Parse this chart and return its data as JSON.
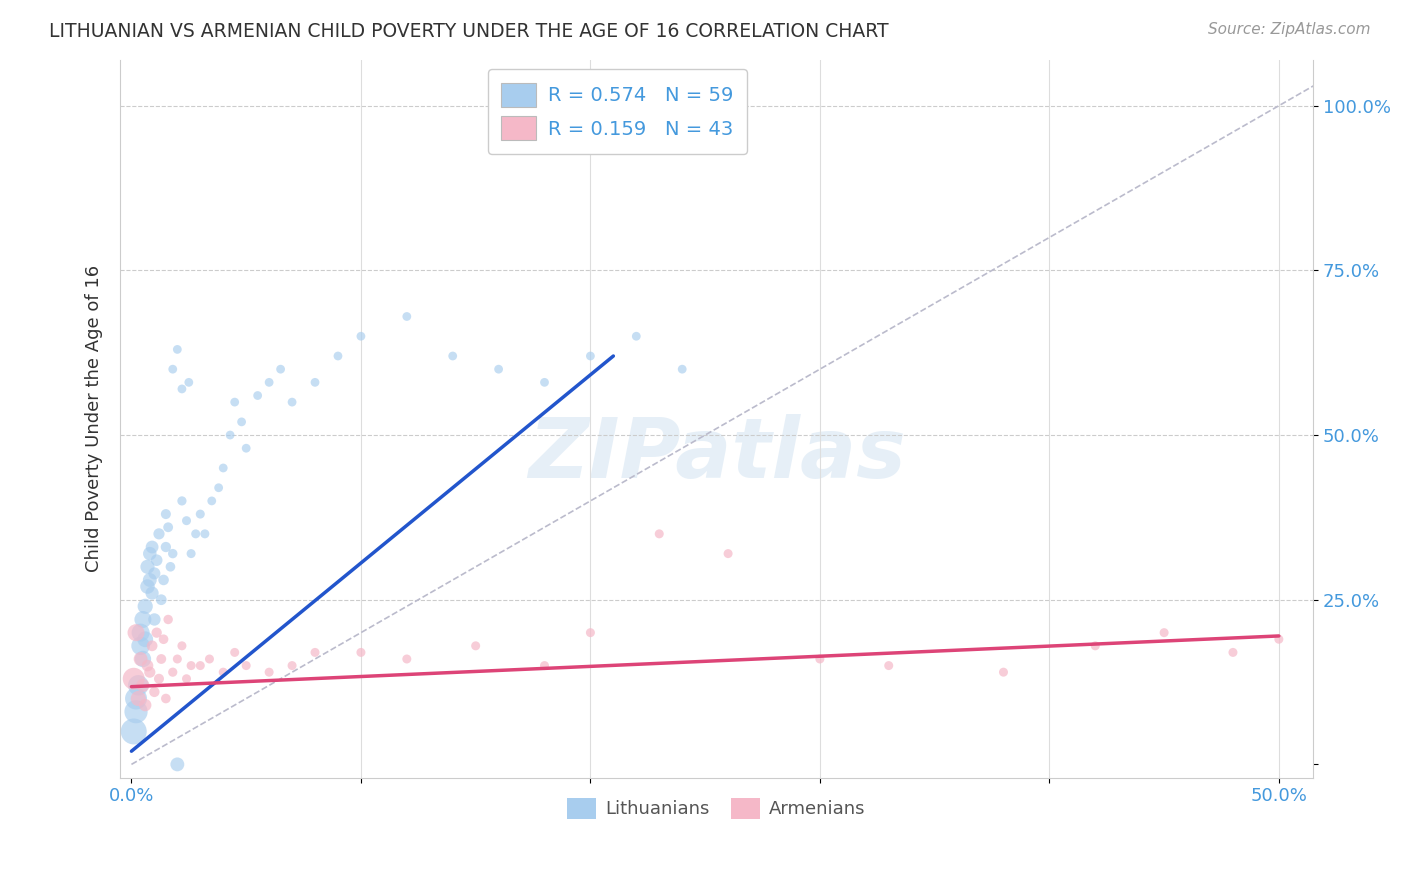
{
  "title": "LITHUANIAN VS ARMENIAN CHILD POVERTY UNDER THE AGE OF 16 CORRELATION CHART",
  "source": "Source: ZipAtlas.com",
  "ylabel": "Child Poverty Under the Age of 16",
  "xlim": [
    -0.005,
    0.515
  ],
  "ylim": [
    -0.02,
    1.07
  ],
  "xticks": [
    0.0,
    0.1,
    0.2,
    0.3,
    0.4,
    0.5
  ],
  "xticklabels": [
    "0.0%",
    "",
    "",
    "",
    "",
    "50.0%"
  ],
  "yticks": [
    0.0,
    0.25,
    0.5,
    0.75,
    1.0
  ],
  "yticklabels": [
    "",
    "25.0%",
    "50.0%",
    "75.0%",
    "100.0%"
  ],
  "color_blue": "#A8CDEE",
  "color_pink": "#F5B8C8",
  "color_blue_line": "#2255CC",
  "color_pink_line": "#DD4477",
  "color_diag": "#BBBBCC",
  "watermark_text": "ZIPatlas",
  "axis_color": "#4499DD",
  "legend_label1": "R = 0.574   N = 59",
  "legend_label2": "R = 0.159   N = 43",
  "lit_x": [
    0.001,
    0.002,
    0.002,
    0.003,
    0.004,
    0.004,
    0.005,
    0.005,
    0.006,
    0.006,
    0.007,
    0.007,
    0.008,
    0.008,
    0.009,
    0.009,
    0.01,
    0.01,
    0.011,
    0.012,
    0.013,
    0.014,
    0.015,
    0.015,
    0.016,
    0.017,
    0.018,
    0.02,
    0.022,
    0.024,
    0.026,
    0.028,
    0.03,
    0.032,
    0.035,
    0.038,
    0.04,
    0.043,
    0.045,
    0.048,
    0.05,
    0.055,
    0.06,
    0.065,
    0.07,
    0.08,
    0.09,
    0.1,
    0.12,
    0.14,
    0.16,
    0.18,
    0.2,
    0.22,
    0.24,
    0.02,
    0.025,
    0.018,
    0.022
  ],
  "lit_y": [
    0.05,
    0.08,
    0.1,
    0.12,
    0.18,
    0.2,
    0.22,
    0.16,
    0.19,
    0.24,
    0.27,
    0.3,
    0.28,
    0.32,
    0.26,
    0.33,
    0.22,
    0.29,
    0.31,
    0.35,
    0.25,
    0.28,
    0.33,
    0.38,
    0.36,
    0.3,
    0.32,
    0.0,
    0.4,
    0.37,
    0.32,
    0.35,
    0.38,
    0.35,
    0.4,
    0.42,
    0.45,
    0.5,
    0.55,
    0.52,
    0.48,
    0.56,
    0.58,
    0.6,
    0.55,
    0.58,
    0.62,
    0.65,
    0.68,
    0.62,
    0.6,
    0.58,
    0.62,
    0.65,
    0.6,
    0.63,
    0.58,
    0.6,
    0.57
  ],
  "arm_x": [
    0.001,
    0.002,
    0.003,
    0.004,
    0.005,
    0.006,
    0.007,
    0.008,
    0.009,
    0.01,
    0.011,
    0.012,
    0.013,
    0.014,
    0.015,
    0.016,
    0.018,
    0.02,
    0.022,
    0.024,
    0.026,
    0.03,
    0.034,
    0.04,
    0.045,
    0.05,
    0.06,
    0.07,
    0.08,
    0.1,
    0.12,
    0.15,
    0.18,
    0.2,
    0.23,
    0.26,
    0.3,
    0.33,
    0.38,
    0.42,
    0.45,
    0.48,
    0.5
  ],
  "arm_y": [
    0.13,
    0.2,
    0.1,
    0.16,
    0.12,
    0.09,
    0.15,
    0.14,
    0.18,
    0.11,
    0.2,
    0.13,
    0.16,
    0.19,
    0.1,
    0.22,
    0.14,
    0.16,
    0.18,
    0.13,
    0.15,
    0.15,
    0.16,
    0.14,
    0.17,
    0.15,
    0.14,
    0.15,
    0.17,
    0.17,
    0.16,
    0.18,
    0.15,
    0.2,
    0.35,
    0.32,
    0.16,
    0.15,
    0.14,
    0.18,
    0.2,
    0.17,
    0.19
  ],
  "lit_sizes": [
    350,
    280,
    250,
    220,
    180,
    170,
    150,
    140,
    130,
    120,
    110,
    105,
    100,
    95,
    90,
    85,
    80,
    75,
    70,
    65,
    60,
    58,
    55,
    52,
    50,
    48,
    46,
    100,
    44,
    42,
    42,
    42,
    42,
    42,
    40,
    40,
    40,
    40,
    40,
    40,
    40,
    40,
    40,
    40,
    40,
    40,
    40,
    40,
    40,
    40,
    40,
    40,
    40,
    40,
    40,
    40,
    40,
    40,
    40
  ],
  "arm_sizes": [
    250,
    150,
    120,
    100,
    90,
    80,
    70,
    65,
    60,
    55,
    55,
    52,
    50,
    48,
    48,
    46,
    44,
    42,
    42,
    42,
    42,
    42,
    42,
    42,
    42,
    42,
    42,
    42,
    42,
    42,
    42,
    42,
    42,
    42,
    42,
    42,
    42,
    42,
    42,
    42,
    42,
    42,
    42
  ],
  "blue_line_x0": 0.0,
  "blue_line_y0": 0.02,
  "blue_line_x1": 0.21,
  "blue_line_y1": 0.62,
  "pink_line_x0": 0.0,
  "pink_line_y0": 0.118,
  "pink_line_x1": 0.5,
  "pink_line_y1": 0.195
}
